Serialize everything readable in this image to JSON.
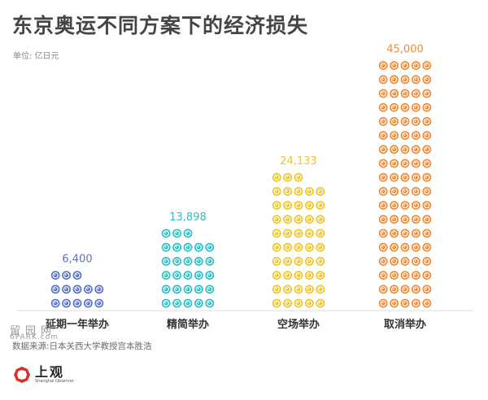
{
  "title": "东京奥运不同方案下的经济损失",
  "unit": "单位: 亿日元",
  "source": "数据来源:日本关西大学教授宫本胜浩",
  "logo": {
    "name": "上观",
    "sub": "Shanghai Observer"
  },
  "watermark": {
    "main": "留园网",
    "sub": "6PARK.com"
  },
  "colors": {
    "title": "#454545",
    "axis": "#dddddd",
    "delay": "#5a72c8",
    "simplified": "#2bbfc8",
    "empty": "#f0c52a",
    "cancel": "#f08a35",
    "logo": "#d8312a"
  },
  "chart_data": {
    "type": "pictogram",
    "categories": [
      "延期一年举办",
      "精简举办",
      "空场举办",
      "取消举办"
    ],
    "values": [
      6400,
      13898,
      24133,
      45000
    ],
    "value_labels": [
      "6,400",
      "13,898",
      "24,133",
      "45,000"
    ],
    "ylabel": "单位: 亿日元",
    "legend": "none",
    "grid": false
  }
}
